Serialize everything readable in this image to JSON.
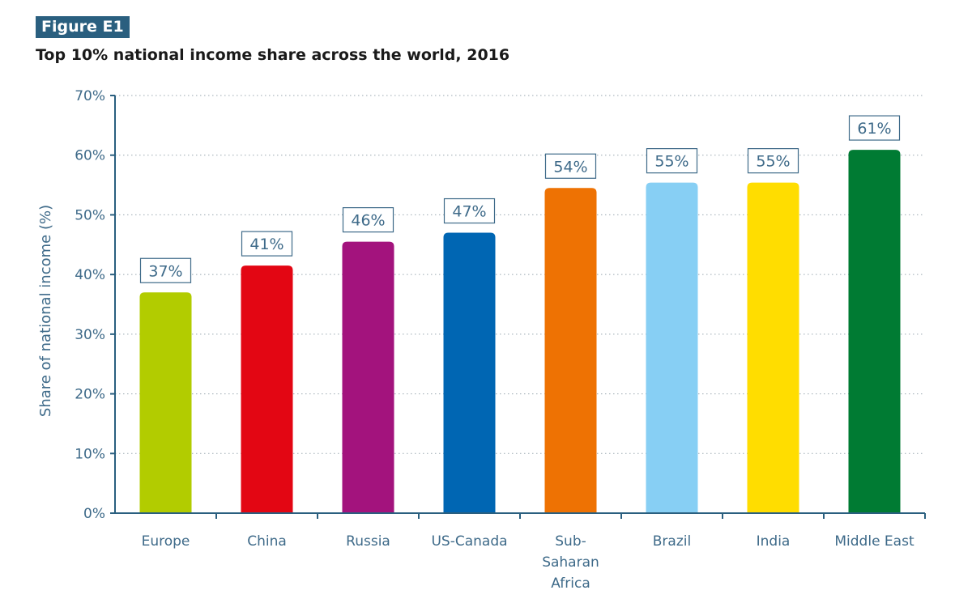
{
  "figure": {
    "badge": "Figure E1",
    "title": "Top 10% national income share across the world, 2016"
  },
  "chart_data": {
    "type": "bar",
    "title": "Top 10% national income share across the world, 2016",
    "xlabel": "",
    "ylabel": "Share of national income (%)",
    "ylim": [
      0,
      70
    ],
    "yticks": [
      0,
      10,
      20,
      30,
      40,
      50,
      60,
      70
    ],
    "ytick_labels": [
      "0%",
      "10%",
      "20%",
      "30%",
      "40%",
      "50%",
      "60%",
      "70%"
    ],
    "grid": "horizontal dotted",
    "categories": [
      "Europe",
      "China",
      "Russia",
      "US-Canada",
      "Sub-Saharan Africa",
      "Brazil",
      "India",
      "Middle East"
    ],
    "category_lines": [
      [
        "Europe"
      ],
      [
        "China"
      ],
      [
        "Russia"
      ],
      [
        "US-Canada"
      ],
      [
        "Sub-",
        "Saharan",
        "Africa"
      ],
      [
        "Brazil"
      ],
      [
        "India"
      ],
      [
        "Middle East"
      ]
    ],
    "values": [
      37,
      41.5,
      45.5,
      47,
      54.5,
      55.4,
      55.4,
      60.9
    ],
    "data_labels": [
      "37%",
      "41%",
      "46%",
      "47%",
      "54%",
      "55%",
      "55%",
      "61%"
    ],
    "colors": [
      "#b2cc00",
      "#e30613",
      "#a3137d",
      "#0066b3",
      "#ee7203",
      "#87cff4",
      "#ffdd00",
      "#007b33"
    ],
    "axis_color": "#2a5f7f"
  }
}
